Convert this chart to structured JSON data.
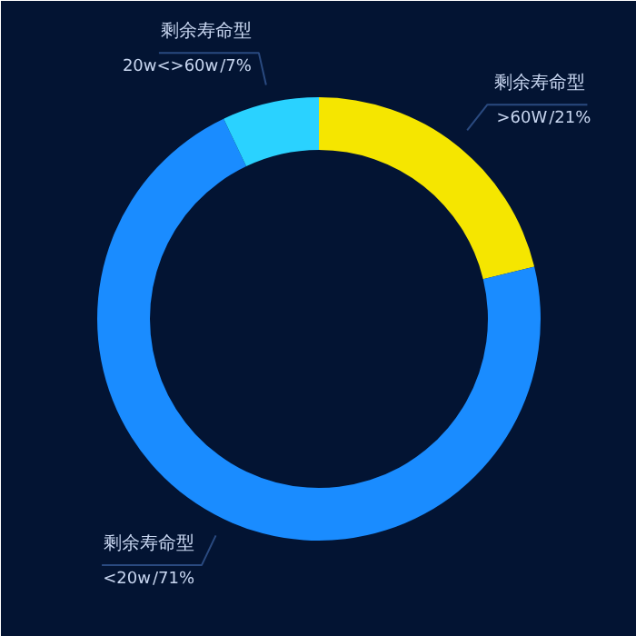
{
  "chart_data": {
    "type": "donut",
    "categories": [
      ">60W",
      "<20w",
      "20w<>60w"
    ],
    "values": [
      21,
      71,
      7
    ],
    "colors": [
      "#f5e600",
      "#1a8cff",
      "#2ad2ff"
    ],
    "value_labels": [
      "/21%",
      "/71%",
      "/7%"
    ],
    "annotations": [
      "剩余寿命型",
      "剩余寿命型",
      "剩余寿命型"
    ]
  }
}
